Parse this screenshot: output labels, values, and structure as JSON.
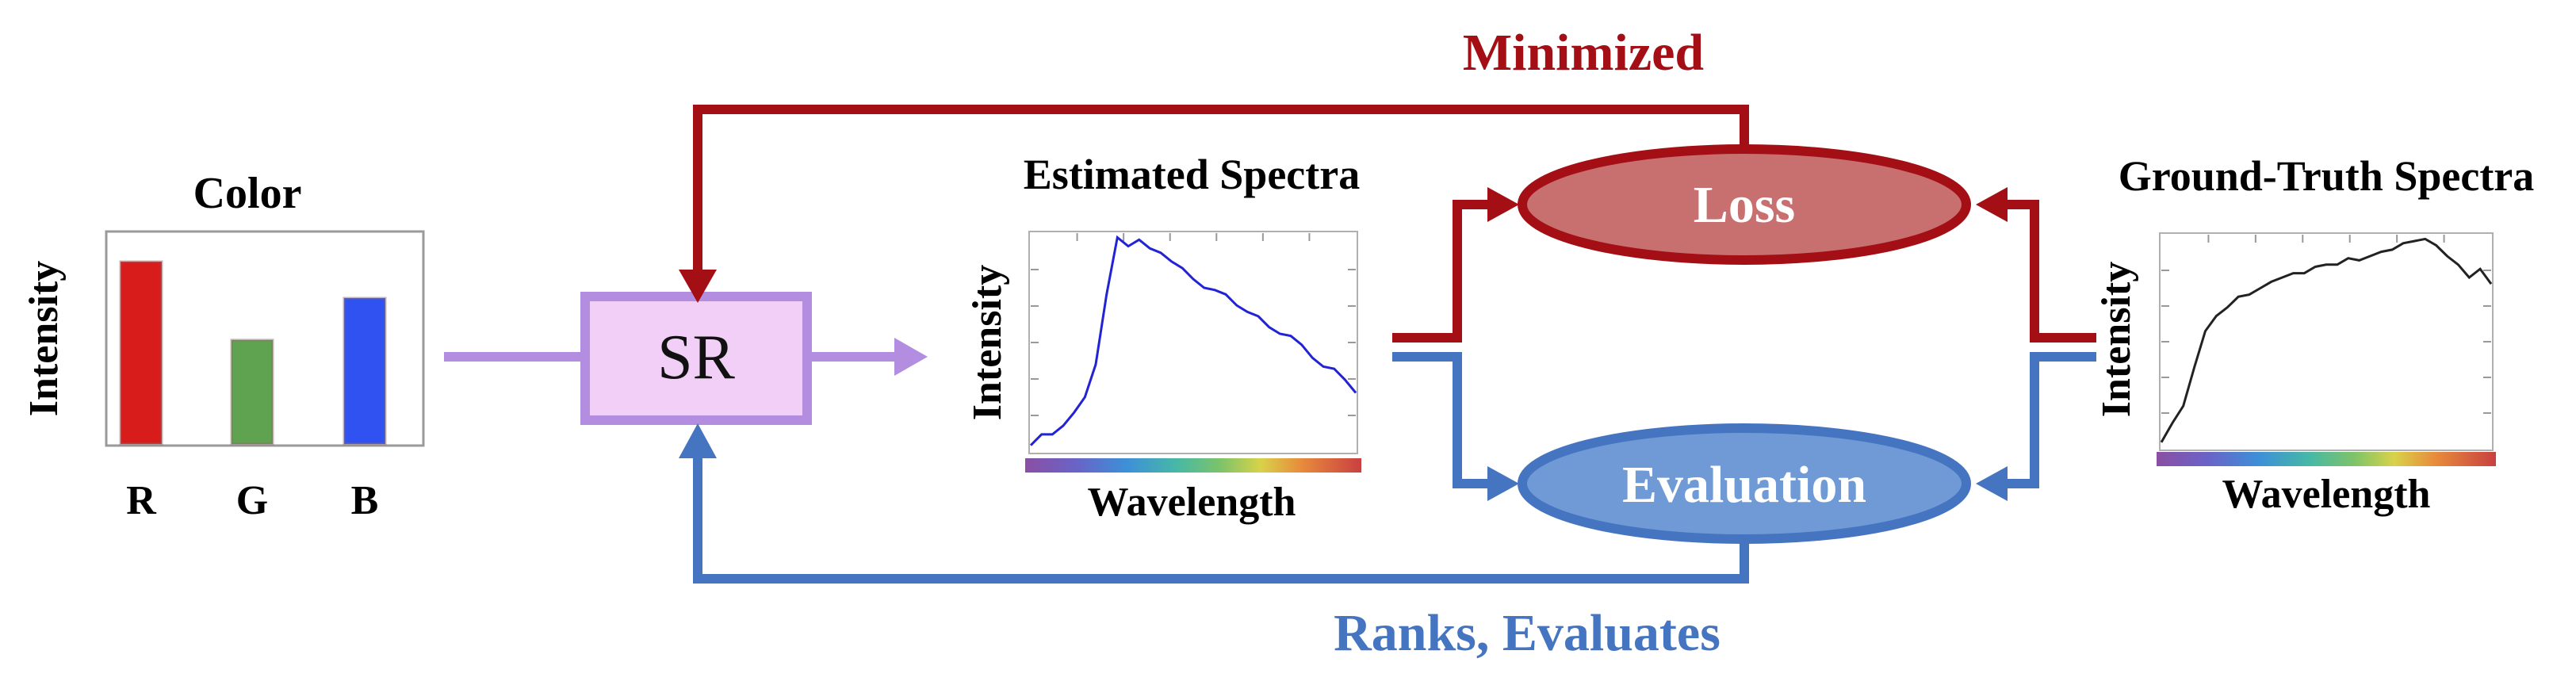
{
  "colors": {
    "red": "#a40f16",
    "blue": "#4575c0",
    "purple": "#b38ee0",
    "sr_fill": "#f2cff7",
    "loss_fill": "#c87070",
    "eval_fill": "#6f9ad6",
    "bar_r": "#d81b1b",
    "bar_g": "#5fa24f",
    "bar_b": "#2f52f0"
  },
  "color_panel": {
    "title": "Color",
    "ylabel": "Intensity",
    "bars": [
      {
        "label": "R",
        "value": 1.0
      },
      {
        "label": "G",
        "value": 0.57
      },
      {
        "label": "B",
        "value": 0.8
      }
    ]
  },
  "sr": {
    "label": "SR"
  },
  "estimated": {
    "title": "Estimated Spectra",
    "ylabel": "Intensity",
    "xlabel": "Wavelength"
  },
  "ground_truth": {
    "title": "Ground-Truth Spectra",
    "ylabel": "Intensity",
    "xlabel": "Wavelength"
  },
  "loss": {
    "label": "Loss"
  },
  "evaluation": {
    "label": "Evaluation"
  },
  "flows": {
    "minimized": "Minimized",
    "ranks": "Ranks, Evaluates"
  },
  "chart_data": [
    {
      "type": "bar",
      "title": "Color",
      "ylabel": "Intensity",
      "xlabel": "",
      "categories": [
        "R",
        "G",
        "B"
      ],
      "values": [
        1.0,
        0.57,
        0.8
      ],
      "ylim": [
        0,
        1.1
      ]
    },
    {
      "type": "line",
      "title": "Estimated Spectra",
      "ylabel": "Intensity",
      "xlabel": "Wavelength",
      "x": [
        0,
        1,
        2,
        3,
        4,
        5,
        6,
        7,
        8,
        9,
        10,
        11,
        12,
        13,
        14,
        15,
        16,
        17,
        18,
        19,
        20,
        21,
        22,
        23,
        24,
        25,
        26,
        27,
        28,
        29,
        30
      ],
      "values": [
        0.03,
        0.08,
        0.08,
        0.12,
        0.18,
        0.25,
        0.4,
        0.72,
        0.98,
        0.94,
        0.97,
        0.93,
        0.91,
        0.87,
        0.84,
        0.79,
        0.75,
        0.74,
        0.72,
        0.67,
        0.64,
        0.62,
        0.57,
        0.54,
        0.53,
        0.49,
        0.43,
        0.39,
        0.38,
        0.33,
        0.27
      ],
      "ylim": [
        0,
        1.0
      ]
    },
    {
      "type": "line",
      "title": "Ground-Truth Spectra",
      "ylabel": "Intensity",
      "xlabel": "Wavelength",
      "x": [
        0,
        1,
        2,
        3,
        4,
        5,
        6,
        7,
        8,
        9,
        10,
        11,
        12,
        13,
        14,
        15,
        16,
        17,
        18,
        19,
        20,
        21,
        22,
        23,
        24,
        25,
        26,
        27,
        28,
        29,
        30
      ],
      "values": [
        0.03,
        0.12,
        0.2,
        0.38,
        0.55,
        0.62,
        0.66,
        0.71,
        0.72,
        0.75,
        0.78,
        0.8,
        0.82,
        0.82,
        0.85,
        0.86,
        0.86,
        0.89,
        0.88,
        0.9,
        0.92,
        0.93,
        0.96,
        0.97,
        0.98,
        0.95,
        0.9,
        0.86,
        0.8,
        0.84,
        0.77
      ],
      "ylim": [
        0,
        1.0
      ]
    }
  ]
}
